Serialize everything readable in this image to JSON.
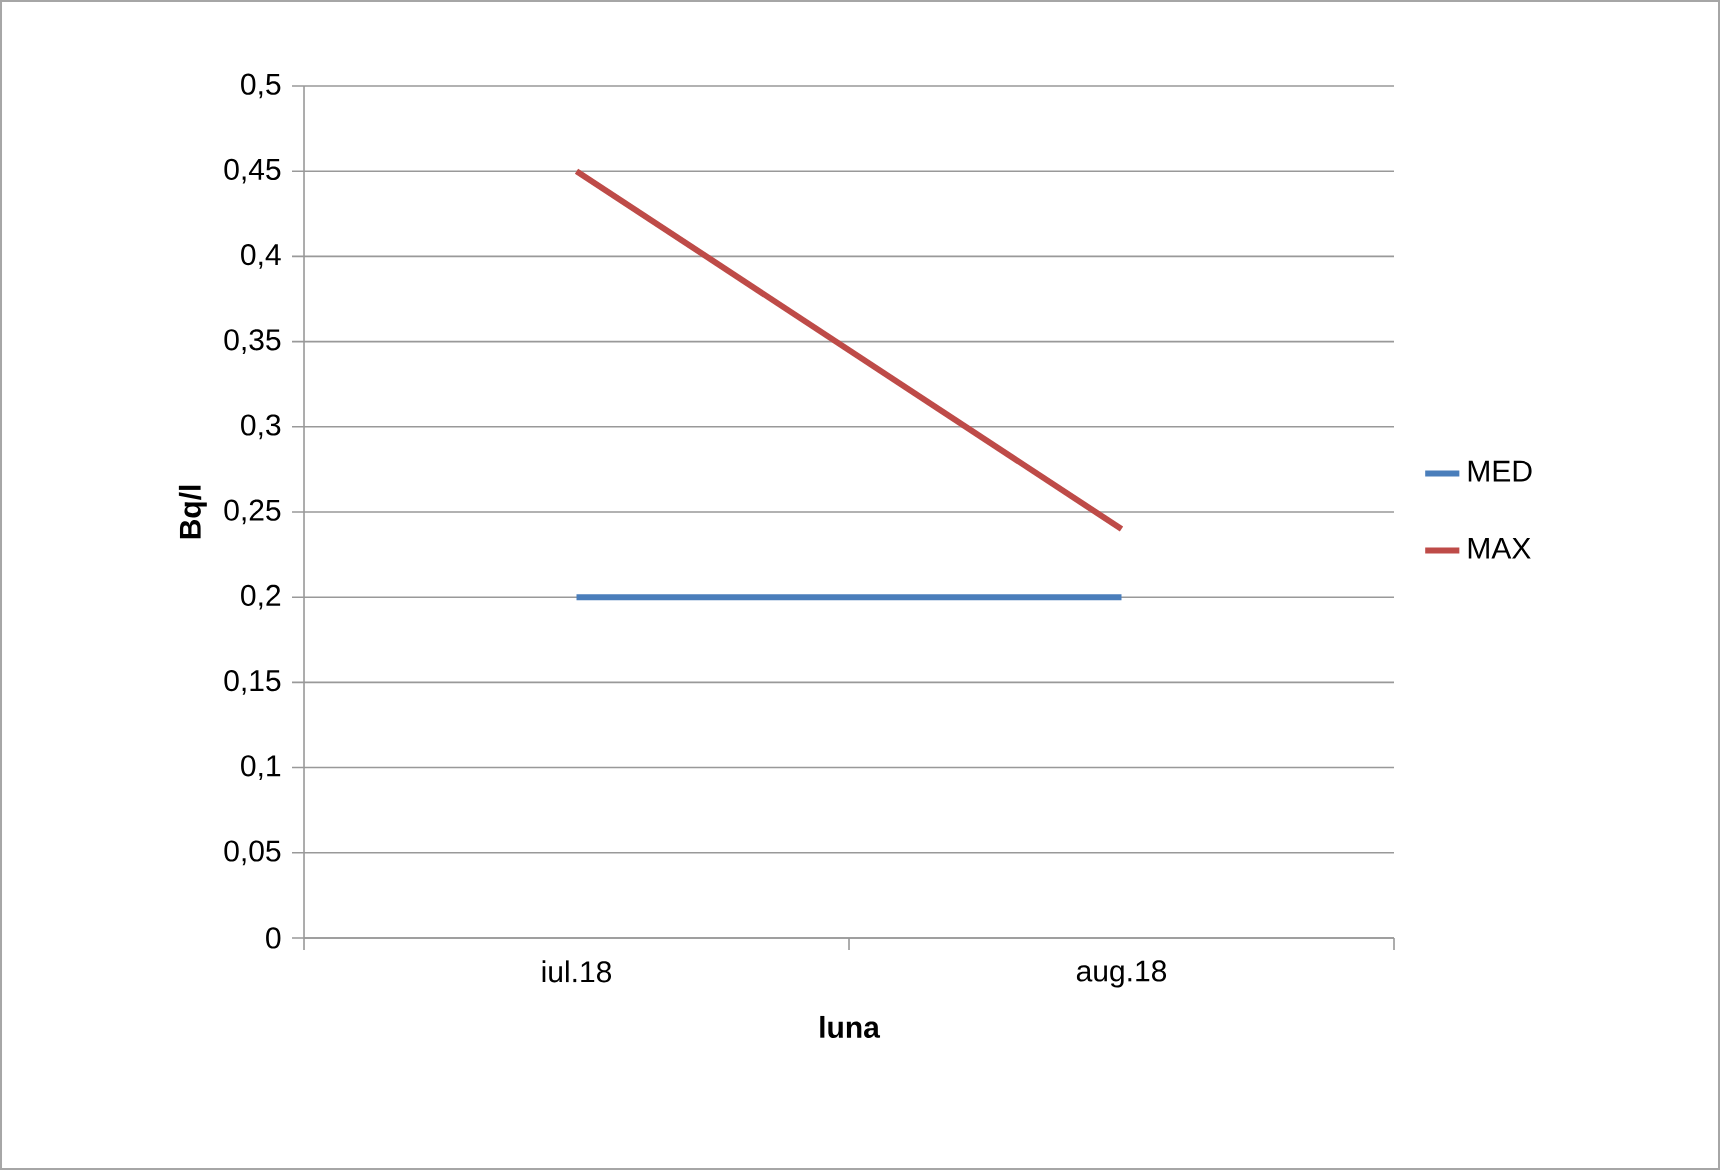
{
  "chart_data": {
    "type": "line",
    "xlabel": "luna",
    "ylabel": "Bq/l",
    "categories": [
      "iul.18",
      "aug.18"
    ],
    "series": [
      {
        "name": "MED",
        "color": "#4a7ebb",
        "values": [
          0.2,
          0.2
        ]
      },
      {
        "name": "MAX",
        "color": "#be4b48",
        "values": [
          0.45,
          0.24
        ]
      }
    ],
    "ylim": [
      0,
      0.5
    ],
    "yticks": [
      {
        "value": 0,
        "label": "0"
      },
      {
        "value": 0.05,
        "label": "0,05"
      },
      {
        "value": 0.1,
        "label": "0,1"
      },
      {
        "value": 0.15,
        "label": "0,15"
      },
      {
        "value": 0.2,
        "label": "0,2"
      },
      {
        "value": 0.25,
        "label": "0,25"
      },
      {
        "value": 0.3,
        "label": "0,3"
      },
      {
        "value": 0.35,
        "label": "0,35"
      },
      {
        "value": 0.4,
        "label": "0,4"
      },
      {
        "value": 0.45,
        "label": "0,45"
      },
      {
        "value": 0.5,
        "label": "0,5"
      }
    ],
    "grid": "y",
    "legend": "right",
    "marker": "none"
  }
}
